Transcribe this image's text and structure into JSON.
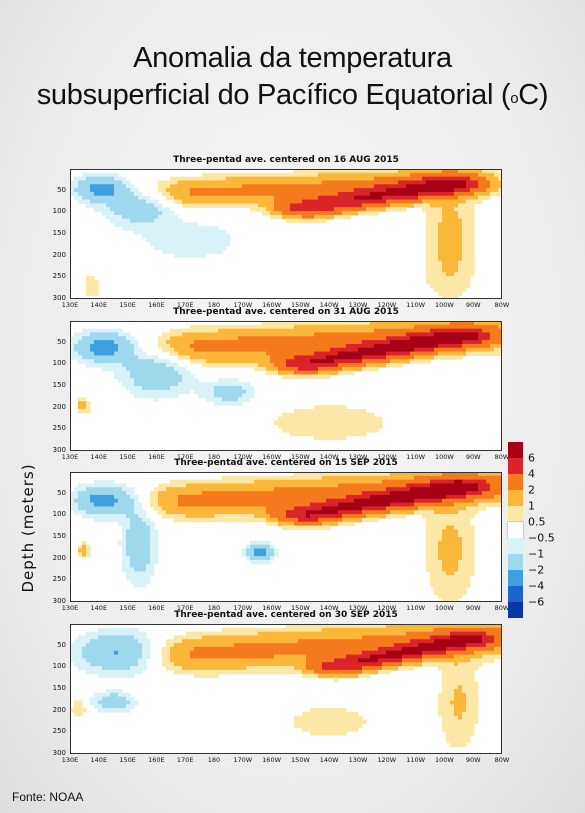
{
  "header": {
    "title_line1": "Anomalia da temperatura",
    "title_line2_pre": "subsuperficial do Pacífico Equatorial (",
    "title_sup": "o",
    "title_line2_post": "C)"
  },
  "source": "Fonte: NOAA",
  "colors": {
    "c6": "#a50016",
    "c4": "#d9242a",
    "c2": "#f57a1d",
    "c1": "#fbb73a",
    "c05": "#fce8a6",
    "neutral": "#ffffff",
    "cm05": "#d8f2f7",
    "cm1": "#9ed8ec",
    "cm2": "#3f9fe0",
    "cm4": "#1f64cc",
    "cm6": "#0b36a8"
  },
  "chart_data": {
    "type": "heatmap",
    "ylabel": "Depth (meters)",
    "x_ticks": [
      "130E",
      "140E",
      "150E",
      "160E",
      "170E",
      "180",
      "170W",
      "160W",
      "150W",
      "140W",
      "130W",
      "120W",
      "110W",
      "100W",
      "90W",
      "80W"
    ],
    "y_ticks": [
      "50",
      "100",
      "150",
      "200",
      "250",
      "300"
    ],
    "ylim": [
      300,
      0
    ],
    "legend": {
      "levels": [
        "6",
        "4",
        "2",
        "1",
        "0.5",
        "−0.5",
        "−1",
        "−2",
        "−4",
        "−6"
      ],
      "placement": "right"
    },
    "panels": [
      {
        "title": "Three-pentad ave. centered on 16 AUG 2015",
        "max_warm_anomaly": 6,
        "min_cold_anomaly": -4
      },
      {
        "title": "Three-pentad ave. centered on 31 AUG 2015",
        "max_warm_anomaly": 6,
        "min_cold_anomaly": -4
      },
      {
        "title": "Three-pentad ave. centered on 15 SEP 2015",
        "max_warm_anomaly": 6,
        "min_cold_anomaly": -4
      },
      {
        "title": "Three-pentad ave. centered on 30 SEP 2015",
        "max_warm_anomaly": 6,
        "min_cold_anomaly": -4
      }
    ]
  }
}
